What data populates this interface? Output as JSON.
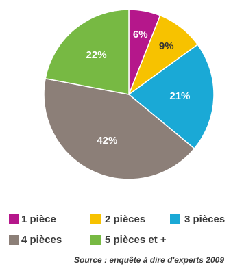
{
  "chart_data": {
    "type": "pie",
    "categories": [
      "1 pièce",
      "2 pièces",
      "3 pièces",
      "4 pièces",
      "5 pièces et +"
    ],
    "values": [
      6,
      9,
      21,
      42,
      22
    ],
    "labels": [
      "6%",
      "9%",
      "21%",
      "42%",
      "22%"
    ],
    "colors": [
      "#b5178b",
      "#f7c200",
      "#1aa9d6",
      "#8c7f78",
      "#77b943"
    ],
    "legend_placement": "bottom"
  },
  "legend": {
    "items": [
      "1 pièce",
      "2 pièces",
      "3 pièces",
      "4 pièces",
      "5 pièces et +"
    ]
  },
  "source": "Source : enquête à dire d'experts 2009"
}
